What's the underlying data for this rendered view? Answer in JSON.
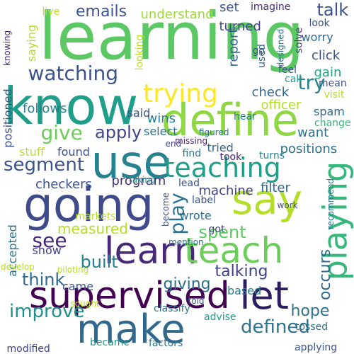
{
  "words": [
    {
      "text": "learning",
      "color": "#5cc863"
    },
    {
      "text": "know",
      "color": "#1f9e89"
    },
    {
      "text": "define",
      "color": "#8fd744"
    },
    {
      "text": "use",
      "color": "#26828e"
    },
    {
      "text": "going",
      "color": "#3e4a89"
    },
    {
      "text": "say",
      "color": "#b5de2b"
    },
    {
      "text": "learn",
      "color": "#482878"
    },
    {
      "text": "teach",
      "color": "#6ccd5a"
    },
    {
      "text": "supervised",
      "color": "#440154"
    },
    {
      "text": "make",
      "color": "#31688e"
    },
    {
      "text": "let",
      "color": "#2d1e61"
    },
    {
      "text": "playing",
      "color": "#35b779"
    },
    {
      "text": "teaching",
      "color": "#1f9e89"
    },
    {
      "text": "trying",
      "color": "#fde725"
    },
    {
      "text": "watching",
      "color": "#3b528b"
    },
    {
      "text": "emails",
      "color": "#3b528b"
    },
    {
      "text": "talk",
      "color": "#3b528b"
    },
    {
      "text": "try",
      "color": "#26828e"
    },
    {
      "text": "give",
      "color": "#6ccd5a"
    },
    {
      "text": "apply",
      "color": "#404387"
    },
    {
      "text": "segment",
      "color": "#3b528b"
    },
    {
      "text": "see",
      "color": "#482878"
    },
    {
      "text": "play",
      "color": "#2c728e"
    },
    {
      "text": "spent",
      "color": "#5ec962"
    },
    {
      "text": "talking",
      "color": "#404387"
    },
    {
      "text": "defined",
      "color": "#2c728e"
    },
    {
      "text": "think",
      "color": "#31688e"
    },
    {
      "text": "built",
      "color": "#26828e"
    },
    {
      "text": "giving",
      "color": "#2c728e"
    },
    {
      "text": "improve",
      "color": "#21918c"
    },
    {
      "text": "hope",
      "color": "#2c728e"
    },
    {
      "text": "occurs",
      "color": "#31688e"
    },
    {
      "text": "measured",
      "color": "#b5de2b"
    },
    {
      "text": "program",
      "color": "#46337e"
    },
    {
      "text": "checkers",
      "color": "#3b528b"
    },
    {
      "text": "machine",
      "color": "#404387"
    },
    {
      "text": "filter",
      "color": "#31688e"
    },
    {
      "text": "positions",
      "color": "#2c728e"
    },
    {
      "text": "found",
      "color": "#3b528b"
    },
    {
      "text": "stuff",
      "color": "#c0df25"
    },
    {
      "text": "tried",
      "color": "#31688e"
    },
    {
      "text": "want",
      "color": "#2c728e"
    },
    {
      "text": "check",
      "color": "#31688e"
    },
    {
      "text": "officer",
      "color": "#b5de2b"
    },
    {
      "text": "spam",
      "color": "#31688e"
    },
    {
      "text": "wins",
      "color": "#26828e"
    },
    {
      "text": "select",
      "color": "#2c728e"
    },
    {
      "text": "said",
      "color": "#3b528b"
    },
    {
      "text": "follows",
      "color": "#26828e"
    },
    {
      "text": "positioned",
      "color": "#3b528b"
    },
    {
      "text": "understand",
      "color": "#9fda3a"
    },
    {
      "text": "set",
      "color": "#3b528b"
    },
    {
      "text": "report",
      "color": "#31688e"
    },
    {
      "text": "turned",
      "color": "#404387"
    },
    {
      "text": "click",
      "color": "#3b528b"
    },
    {
      "text": "gain",
      "color": "#22a884"
    },
    {
      "text": "imagine",
      "color": "#482878"
    },
    {
      "text": "look",
      "color": "#3b528b"
    },
    {
      "text": "saying",
      "color": "#b5de2b"
    },
    {
      "text": "live",
      "color": "#c0df25"
    },
    {
      "text": "knowing",
      "color": "#482878"
    },
    {
      "text": "worry",
      "color": "#31688e"
    },
    {
      "text": "solve",
      "color": "#46337e"
    },
    {
      "text": "looking",
      "color": "#b5de2b"
    },
    {
      "text": "used",
      "color": "#31688e"
    },
    {
      "text": "designed",
      "color": "#2c728e"
    },
    {
      "text": "go",
      "color": "#3b528b"
    },
    {
      "text": "mean",
      "color": "#3b528b"
    },
    {
      "text": "feel",
      "color": "#3b528b"
    },
    {
      "text": "call",
      "color": "#1f9e89"
    },
    {
      "text": "visit",
      "color": "#b5de2b"
    },
    {
      "text": "hear",
      "color": "#26828e"
    },
    {
      "text": "figured",
      "color": "#2c728e"
    },
    {
      "text": "missing",
      "color": "#482878"
    },
    {
      "text": "change",
      "color": "#35b779"
    },
    {
      "text": "end",
      "color": "#404387"
    },
    {
      "text": "find",
      "color": "#2c728e"
    },
    {
      "text": "took",
      "color": "#482878"
    },
    {
      "text": "turns",
      "color": "#26828e"
    },
    {
      "text": "recommend",
      "color": "#2c728e"
    },
    {
      "text": "taking",
      "color": "#1f9e89"
    },
    {
      "text": "lead",
      "color": "#3b528b"
    },
    {
      "text": "label",
      "color": "#3b528b"
    },
    {
      "text": "become",
      "color": "#3b528b"
    },
    {
      "text": "work",
      "color": "#3b528b"
    },
    {
      "text": "markets",
      "color": "#b5de2b"
    },
    {
      "text": "wrote",
      "color": "#2c728e"
    },
    {
      "text": "got",
      "color": "#404387"
    },
    {
      "text": "accepted",
      "color": "#2c728e"
    },
    {
      "text": "develop",
      "color": "#b5de2b"
    },
    {
      "text": "piloting",
      "color": "#b5de2b"
    },
    {
      "text": "mention",
      "color": "#2c728e"
    },
    {
      "text": "show",
      "color": "#404387"
    },
    {
      "text": "came",
      "color": "#3b528b"
    },
    {
      "text": "sought",
      "color": "#b5de2b"
    },
    {
      "text": "told",
      "color": "#3b528b"
    },
    {
      "text": "based",
      "color": "#26828e"
    },
    {
      "text": "classify",
      "color": "#2c728e"
    },
    {
      "text": "advise",
      "color": "#1f9e89"
    },
    {
      "text": "tossed",
      "color": "#2c728e"
    },
    {
      "text": "became",
      "color": "#21918c"
    },
    {
      "text": "factors",
      "color": "#2c728e"
    },
    {
      "text": "modified",
      "color": "#404387"
    },
    {
      "text": "applying",
      "color": "#3b528b"
    }
  ]
}
